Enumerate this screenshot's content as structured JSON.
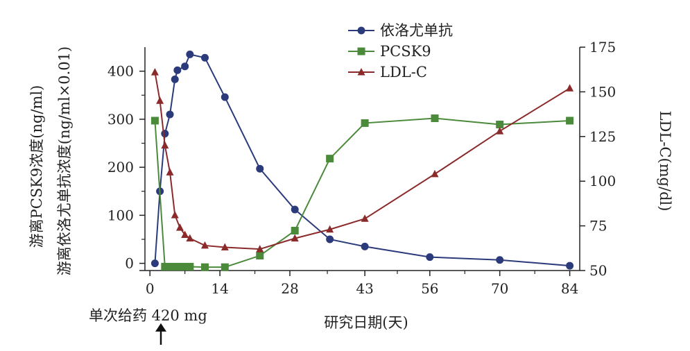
{
  "chart_data": {
    "type": "line",
    "xlabel": "研究日期(天)",
    "ylabel_left": [
      "游离PCSK9浓度(ng/ml)",
      "游离依洛尤单抗浓度(ng/ml×0.01)"
    ],
    "ylabel_right": "LDL-C(mg/dl)",
    "xticks": [
      0,
      14,
      28,
      43,
      56,
      70,
      84
    ],
    "yticks_left": [
      0,
      100,
      200,
      300,
      400
    ],
    "yticks_right": [
      50,
      75,
      100,
      125,
      150,
      175
    ],
    "xlim": [
      -1,
      86
    ],
    "ylim_left": [
      -15,
      450
    ],
    "ylim_right": [
      50,
      175
    ],
    "annotation": "单次给药 420 mg",
    "legend_position": "top-center",
    "series": [
      {
        "name": "依洛尤单抗",
        "axis": "left",
        "marker": "circle",
        "color": "#2b3a7a",
        "x": [
          1,
          2,
          3,
          4,
          5,
          5.5,
          7,
          8,
          11,
          15,
          22,
          29,
          36,
          43,
          56,
          70,
          84
        ],
        "y": [
          0,
          150,
          270,
          310,
          383,
          402,
          410,
          435,
          428,
          346,
          197,
          112,
          50,
          35,
          13,
          7,
          -5
        ]
      },
      {
        "name": "PCSK9",
        "axis": "left",
        "marker": "square",
        "color": "#4a8a3a",
        "x": [
          1,
          3,
          4,
          5,
          6,
          7,
          8,
          11,
          15,
          22,
          29,
          36,
          43,
          57,
          70,
          84
        ],
        "y": [
          297,
          -7,
          -7,
          -7,
          -7,
          -7,
          -7,
          -8,
          -8,
          16,
          68,
          218,
          292,
          302,
          289,
          297
        ]
      },
      {
        "name": "LDL-C",
        "axis": "right",
        "marker": "triangle",
        "color": "#8b2a2a",
        "x": [
          1,
          2,
          3,
          4,
          5,
          6,
          7,
          8,
          11,
          15,
          22,
          29,
          36,
          43,
          57,
          70,
          84
        ],
        "y": [
          161,
          145,
          120,
          105,
          81,
          74,
          70,
          68,
          64,
          63,
          62,
          68,
          73,
          79,
          104,
          128,
          152
        ]
      }
    ]
  }
}
